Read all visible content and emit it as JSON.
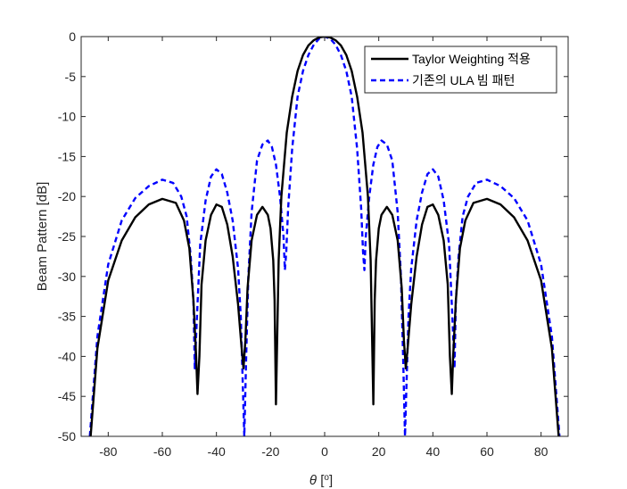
{
  "chart_data": {
    "type": "line",
    "xlabel": "θ [o]",
    "ylabel": "Beam Pattern [dB]",
    "xlim": [
      -90,
      90
    ],
    "ylim": [
      -50,
      0
    ],
    "xticks": [
      -80,
      -60,
      -40,
      -20,
      0,
      20,
      40,
      60,
      80
    ],
    "yticks": [
      0,
      -5,
      -10,
      -15,
      -20,
      -25,
      -30,
      -35,
      -40,
      -45,
      -50
    ],
    "grid": false,
    "legend_position": "top-right",
    "series": [
      {
        "name": "Taylor Weighting 적용",
        "color": "#000000",
        "style": "solid",
        "points": [
          [
            -86.5,
            -50.0
          ],
          [
            -84,
            -39.0
          ],
          [
            -80,
            -30.5
          ],
          [
            -75,
            -25.5
          ],
          [
            -70,
            -22.6
          ],
          [
            -65,
            -21.0
          ],
          [
            -60,
            -20.3
          ],
          [
            -55,
            -20.8
          ],
          [
            -52,
            -23.0
          ],
          [
            -50,
            -26.5
          ],
          [
            -48.5,
            -33.0
          ],
          [
            -47.5,
            -40.0
          ],
          [
            -47,
            -44.7
          ],
          [
            -46.3,
            -40.0
          ],
          [
            -45.5,
            -31.0
          ],
          [
            -44,
            -25.5
          ],
          [
            -42,
            -22.3
          ],
          [
            -40,
            -21.0
          ],
          [
            -38,
            -21.3
          ],
          [
            -36,
            -23.5
          ],
          [
            -34,
            -27.5
          ],
          [
            -32,
            -33.5
          ],
          [
            -30.8,
            -38.5
          ],
          [
            -30,
            -41.5
          ],
          [
            -29.3,
            -38.0
          ],
          [
            -28.5,
            -31.5
          ],
          [
            -27,
            -25.5
          ],
          [
            -25,
            -22.3
          ],
          [
            -23,
            -21.3
          ],
          [
            -21,
            -22.3
          ],
          [
            -20,
            -24.0
          ],
          [
            -19,
            -28.0
          ],
          [
            -18.5,
            -33.0
          ],
          [
            -18,
            -46.0
          ],
          [
            -17.5,
            -37.0
          ],
          [
            -17,
            -28.0
          ],
          [
            -16,
            -20.0
          ],
          [
            -14,
            -12.0
          ],
          [
            -12,
            -7.5
          ],
          [
            -10,
            -4.3
          ],
          [
            -8,
            -2.3
          ],
          [
            -6,
            -1.1
          ],
          [
            -4,
            -0.45
          ],
          [
            -2,
            -0.1
          ],
          [
            0,
            0
          ],
          [
            2,
            -0.1
          ],
          [
            4,
            -0.45
          ],
          [
            6,
            -1.1
          ],
          [
            8,
            -2.3
          ],
          [
            10,
            -4.3
          ],
          [
            12,
            -7.5
          ],
          [
            14,
            -12.0
          ],
          [
            16,
            -20.0
          ],
          [
            17,
            -28.0
          ],
          [
            17.5,
            -37.0
          ],
          [
            18,
            -46.0
          ],
          [
            18.5,
            -33.0
          ],
          [
            19,
            -28.0
          ],
          [
            20,
            -24.0
          ],
          [
            21,
            -22.3
          ],
          [
            23,
            -21.3
          ],
          [
            25,
            -22.3
          ],
          [
            27,
            -25.5
          ],
          [
            28.5,
            -31.5
          ],
          [
            29.3,
            -38.0
          ],
          [
            30,
            -41.5
          ],
          [
            30.8,
            -38.5
          ],
          [
            32,
            -33.5
          ],
          [
            34,
            -27.5
          ],
          [
            36,
            -23.5
          ],
          [
            38,
            -21.3
          ],
          [
            40,
            -21.0
          ],
          [
            42,
            -22.3
          ],
          [
            44,
            -25.5
          ],
          [
            45.5,
            -31.0
          ],
          [
            46.3,
            -40.0
          ],
          [
            47,
            -44.7
          ],
          [
            47.5,
            -40.0
          ],
          [
            48.5,
            -33.0
          ],
          [
            50,
            -26.5
          ],
          [
            52,
            -23.0
          ],
          [
            55,
            -20.8
          ],
          [
            60,
            -20.3
          ],
          [
            65,
            -21.0
          ],
          [
            70,
            -22.6
          ],
          [
            75,
            -25.5
          ],
          [
            80,
            -30.5
          ],
          [
            84,
            -39.0
          ],
          [
            86.5,
            -50.0
          ]
        ]
      },
      {
        "name": "기존의 ULA 빔 패턴",
        "color": "#0000ff",
        "style": "dashed",
        "points": [
          [
            -86.8,
            -50.0
          ],
          [
            -84,
            -37.5
          ],
          [
            -80,
            -28.5
          ],
          [
            -75,
            -23.0
          ],
          [
            -70,
            -20.2
          ],
          [
            -65,
            -18.7
          ],
          [
            -60,
            -17.9
          ],
          [
            -56,
            -18.3
          ],
          [
            -53,
            -20.0
          ],
          [
            -51,
            -22.5
          ],
          [
            -49.5,
            -27.5
          ],
          [
            -48.5,
            -33.0
          ],
          [
            -48,
            -41.5
          ],
          [
            -47.2,
            -35.0
          ],
          [
            -46,
            -26.0
          ],
          [
            -44,
            -20.5
          ],
          [
            -42,
            -17.5
          ],
          [
            -40,
            -16.6
          ],
          [
            -38,
            -17.2
          ],
          [
            -36,
            -19.5
          ],
          [
            -34,
            -23.0
          ],
          [
            -32,
            -29.0
          ],
          [
            -31,
            -35.0
          ],
          [
            -30.3,
            -43.0
          ],
          [
            -29.7,
            -50.0
          ],
          [
            -29.0,
            -40.0
          ],
          [
            -28.2,
            -30.0
          ],
          [
            -27,
            -22.0
          ],
          [
            -25,
            -15.5
          ],
          [
            -23,
            -13.5
          ],
          [
            -21,
            -13.0
          ],
          [
            -19.5,
            -13.8
          ],
          [
            -18,
            -16.0
          ],
          [
            -16.5,
            -20.0
          ],
          [
            -15.2,
            -25.0
          ],
          [
            -14.7,
            -29.2
          ],
          [
            -14.2,
            -27.0
          ],
          [
            -13.5,
            -21.5
          ],
          [
            -12,
            -14.0
          ],
          [
            -10,
            -7.5
          ],
          [
            -8,
            -4.3
          ],
          [
            -6,
            -2.3
          ],
          [
            -4,
            -1.0
          ],
          [
            -2,
            -0.25
          ],
          [
            0,
            0
          ],
          [
            2,
            -0.25
          ],
          [
            4,
            -1.0
          ],
          [
            6,
            -2.3
          ],
          [
            8,
            -4.3
          ],
          [
            10,
            -7.5
          ],
          [
            12,
            -14.0
          ],
          [
            13.5,
            -21.5
          ],
          [
            14.2,
            -27.0
          ],
          [
            14.7,
            -29.2
          ],
          [
            15.2,
            -25.0
          ],
          [
            16.5,
            -20.0
          ],
          [
            18,
            -16.0
          ],
          [
            19.5,
            -13.8
          ],
          [
            21,
            -13.0
          ],
          [
            23,
            -13.5
          ],
          [
            25,
            -15.5
          ],
          [
            27,
            -22.0
          ],
          [
            28.2,
            -30.0
          ],
          [
            29.0,
            -40.0
          ],
          [
            29.7,
            -50.0
          ],
          [
            30.3,
            -43.0
          ],
          [
            31,
            -35.0
          ],
          [
            32,
            -29.0
          ],
          [
            34,
            -23.0
          ],
          [
            36,
            -19.5
          ],
          [
            38,
            -17.2
          ],
          [
            40,
            -16.6
          ],
          [
            42,
            -17.5
          ],
          [
            44,
            -20.5
          ],
          [
            46,
            -26.0
          ],
          [
            47.2,
            -35.0
          ],
          [
            48,
            -41.5
          ],
          [
            48.5,
            -33.0
          ],
          [
            49.5,
            -27.5
          ],
          [
            51,
            -22.5
          ],
          [
            53,
            -20.0
          ],
          [
            56,
            -18.3
          ],
          [
            60,
            -17.9
          ],
          [
            65,
            -18.7
          ],
          [
            70,
            -20.2
          ],
          [
            75,
            -23.0
          ],
          [
            80,
            -28.5
          ],
          [
            84,
            -37.5
          ],
          [
            86.8,
            -50.0
          ]
        ]
      }
    ]
  }
}
